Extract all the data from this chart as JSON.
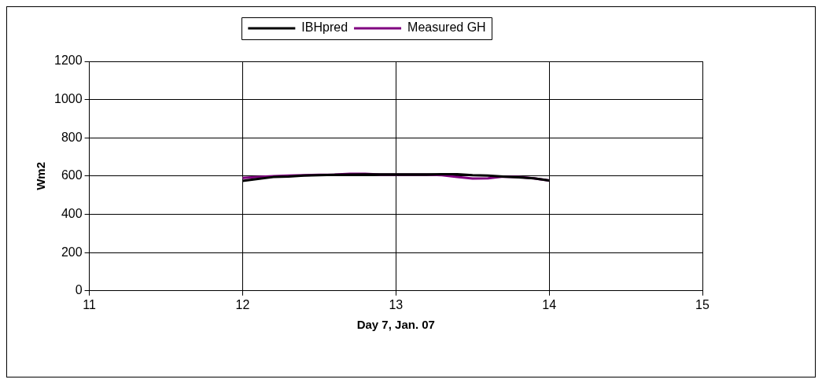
{
  "chart_data": {
    "type": "line",
    "xlabel": "Day 7, Jan. 07",
    "ylabel": "Wm2",
    "x": [
      12,
      12.1,
      12.2,
      12.3,
      12.4,
      12.5,
      12.6,
      12.7,
      12.8,
      12.9,
      13,
      13.1,
      13.2,
      13.3,
      13.4,
      13.5,
      13.6,
      13.7,
      13.8,
      13.9,
      14
    ],
    "series": [
      {
        "name": "IBHpred",
        "color": "#000000",
        "values": [
          575,
          585,
          595,
          598,
          603,
          605,
          607,
          608,
          609,
          609,
          609,
          609,
          609,
          610,
          610,
          605,
          603,
          598,
          593,
          588,
          577
        ]
      },
      {
        "name": "Measured GH",
        "color": "#800080",
        "values": [
          590,
          595,
          600,
          603,
          605,
          607,
          608,
          612,
          612,
          608,
          608,
          608,
          608,
          605,
          595,
          587,
          588,
          597,
          595,
          588,
          577
        ]
      }
    ],
    "xlim": [
      11,
      15
    ],
    "xticks": [
      11,
      12,
      13,
      14,
      15
    ],
    "ylim": [
      0,
      1200
    ],
    "yticks": [
      0,
      200,
      400,
      600,
      800,
      1000,
      1200
    ],
    "grid": true,
    "legend": "top",
    "marker": "none",
    "line_style": "solid"
  }
}
